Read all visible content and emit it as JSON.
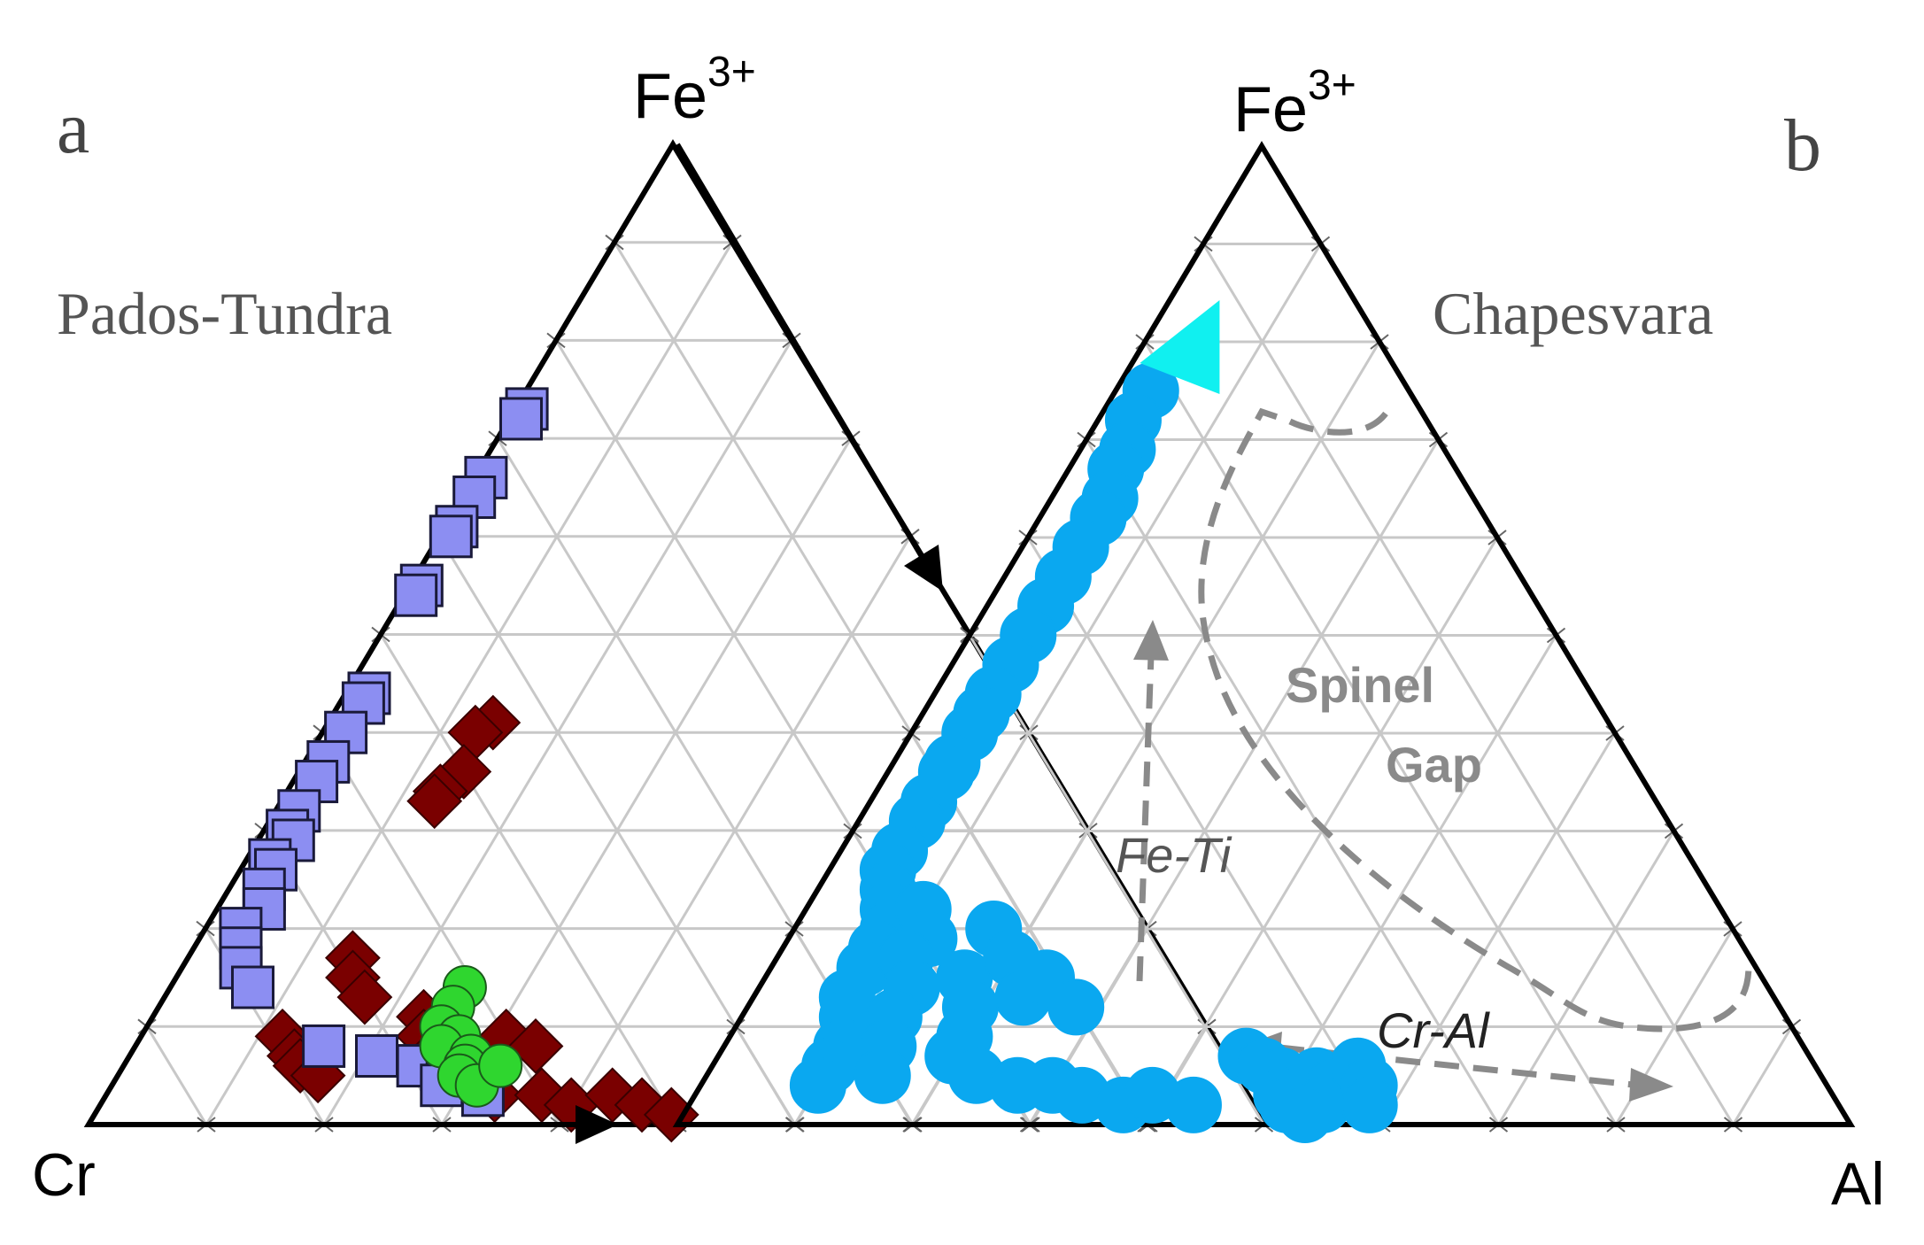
{
  "panels": [
    {
      "letter": "a",
      "locality": "Pados-Tundra",
      "apex_label": "Fe",
      "apex_sup": "3+",
      "left_label": "Cr",
      "right_label": ""
    },
    {
      "letter": "b",
      "locality": "Chapesvara",
      "apex_label": "Fe",
      "apex_sup": "3+",
      "left_label": "",
      "right_label": "Al",
      "annotations": {
        "spinel": "Spinel",
        "gap": "Gap",
        "fe_ti": "Fe-Ti",
        "cr_al": "Cr-Al"
      }
    }
  ],
  "colors": {
    "blue_square": "#8c8ef2",
    "dark_red_diamond": "#7a0000",
    "green_circle": "#2fd62f",
    "light_blue_circle": "#0aa8f0",
    "cyan_triangle": "#10f0f0",
    "grid": "#c8c8c8",
    "dashed": "#8a8a8a"
  },
  "chart_data": [
    {
      "type": "scatter",
      "ternary": true,
      "axes": [
        "Fe3+",
        "Cr",
        "Al"
      ],
      "gridlines_percent": 10,
      "series": [
        {
          "marker": "diamond",
          "color": "#7a0000",
          "points": [
            {
              "fe3": 0.41,
              "cr": 0.45,
              "al": 0.14
            },
            {
              "fe3": 0.4,
              "cr": 0.47,
              "al": 0.13
            },
            {
              "fe3": 0.36,
              "cr": 0.5,
              "al": 0.14
            },
            {
              "fe3": 0.34,
              "cr": 0.53,
              "al": 0.13
            },
            {
              "fe3": 0.33,
              "cr": 0.54,
              "al": 0.13
            },
            {
              "fe3": 0.17,
              "cr": 0.69,
              "al": 0.14
            },
            {
              "fe3": 0.15,
              "cr": 0.7,
              "al": 0.15
            },
            {
              "fe3": 0.13,
              "cr": 0.7,
              "al": 0.17
            },
            {
              "fe3": 0.09,
              "cr": 0.79,
              "al": 0.12
            },
            {
              "fe3": 0.07,
              "cr": 0.79,
              "al": 0.14
            },
            {
              "fe3": 0.06,
              "cr": 0.79,
              "al": 0.15
            },
            {
              "fe3": 0.05,
              "cr": 0.78,
              "al": 0.17
            },
            {
              "fe3": 0.11,
              "cr": 0.66,
              "al": 0.23
            },
            {
              "fe3": 0.09,
              "cr": 0.67,
              "al": 0.24
            },
            {
              "fe3": 0.08,
              "cr": 0.66,
              "al": 0.26
            },
            {
              "fe3": 0.06,
              "cr": 0.66,
              "al": 0.28
            },
            {
              "fe3": 0.05,
              "cr": 0.64,
              "al": 0.31
            },
            {
              "fe3": 0.03,
              "cr": 0.64,
              "al": 0.33
            },
            {
              "fe3": 0.03,
              "cr": 0.6,
              "al": 0.37
            },
            {
              "fe3": 0.02,
              "cr": 0.58,
              "al": 0.4
            },
            {
              "fe3": 0.03,
              "cr": 0.54,
              "al": 0.43
            },
            {
              "fe3": 0.02,
              "cr": 0.52,
              "al": 0.46
            },
            {
              "fe3": 0.01,
              "cr": 0.5,
              "al": 0.49
            },
            {
              "fe3": 0.09,
              "cr": 0.6,
              "al": 0.31
            },
            {
              "fe3": 0.08,
              "cr": 0.58,
              "al": 0.34
            }
          ]
        },
        {
          "marker": "square",
          "color": "#8c8ef2",
          "points": [
            {
              "fe3": 0.73,
              "cr": 0.26,
              "al": 0.01
            },
            {
              "fe3": 0.72,
              "cr": 0.27,
              "al": 0.01
            },
            {
              "fe3": 0.66,
              "cr": 0.33,
              "al": 0.01
            },
            {
              "fe3": 0.64,
              "cr": 0.35,
              "al": 0.01
            },
            {
              "fe3": 0.61,
              "cr": 0.38,
              "al": 0.01
            },
            {
              "fe3": 0.6,
              "cr": 0.39,
              "al": 0.01
            },
            {
              "fe3": 0.55,
              "cr": 0.44,
              "al": 0.01
            },
            {
              "fe3": 0.54,
              "cr": 0.45,
              "al": 0.01
            },
            {
              "fe3": 0.44,
              "cr": 0.54,
              "al": 0.02
            },
            {
              "fe3": 0.43,
              "cr": 0.55,
              "al": 0.02
            },
            {
              "fe3": 0.4,
              "cr": 0.58,
              "al": 0.02
            },
            {
              "fe3": 0.37,
              "cr": 0.61,
              "al": 0.02
            },
            {
              "fe3": 0.35,
              "cr": 0.63,
              "al": 0.02
            },
            {
              "fe3": 0.32,
              "cr": 0.66,
              "al": 0.02
            },
            {
              "fe3": 0.3,
              "cr": 0.68,
              "al": 0.02
            },
            {
              "fe3": 0.29,
              "cr": 0.68,
              "al": 0.03
            },
            {
              "fe3": 0.27,
              "cr": 0.71,
              "al": 0.02
            },
            {
              "fe3": 0.26,
              "cr": 0.71,
              "al": 0.03
            },
            {
              "fe3": 0.24,
              "cr": 0.73,
              "al": 0.03
            },
            {
              "fe3": 0.22,
              "cr": 0.74,
              "al": 0.04
            },
            {
              "fe3": 0.2,
              "cr": 0.77,
              "al": 0.03
            },
            {
              "fe3": 0.18,
              "cr": 0.78,
              "al": 0.04
            },
            {
              "fe3": 0.16,
              "cr": 0.79,
              "al": 0.05
            },
            {
              "fe3": 0.14,
              "cr": 0.79,
              "al": 0.07
            },
            {
              "fe3": 0.08,
              "cr": 0.76,
              "al": 0.16
            },
            {
              "fe3": 0.07,
              "cr": 0.72,
              "al": 0.21
            },
            {
              "fe3": 0.06,
              "cr": 0.69,
              "al": 0.25
            },
            {
              "fe3": 0.05,
              "cr": 0.67,
              "al": 0.28
            },
            {
              "fe3": 0.07,
              "cr": 0.66,
              "al": 0.27
            },
            {
              "fe3": 0.04,
              "cr": 0.68,
              "al": 0.28
            },
            {
              "fe3": 0.05,
              "cr": 0.64,
              "al": 0.31
            },
            {
              "fe3": 0.03,
              "cr": 0.65,
              "al": 0.32
            }
          ]
        },
        {
          "marker": "circle",
          "color": "#2fd62f",
          "points": [
            {
              "fe3": 0.14,
              "cr": 0.61,
              "al": 0.25
            },
            {
              "fe3": 0.12,
              "cr": 0.63,
              "al": 0.25
            },
            {
              "fe3": 0.1,
              "cr": 0.65,
              "al": 0.25
            },
            {
              "fe3": 0.09,
              "cr": 0.64,
              "al": 0.27
            },
            {
              "fe3": 0.08,
              "cr": 0.66,
              "al": 0.26
            },
            {
              "fe3": 0.07,
              "cr": 0.64,
              "al": 0.29
            },
            {
              "fe3": 0.06,
              "cr": 0.65,
              "al": 0.29
            },
            {
              "fe3": 0.05,
              "cr": 0.66,
              "al": 0.29
            },
            {
              "fe3": 0.04,
              "cr": 0.65,
              "al": 0.31
            },
            {
              "fe3": 0.06,
              "cr": 0.62,
              "al": 0.32
            }
          ]
        }
      ]
    },
    {
      "type": "scatter",
      "ternary": true,
      "axes": [
        "Fe3+",
        "Cr",
        "Al"
      ],
      "gridlines_percent": 10,
      "series": [
        {
          "marker": "circle",
          "color": "#0aa8f0",
          "points": [
            {
              "fe3": 0.75,
              "cr": 0.22,
              "al": 0.03
            },
            {
              "fe3": 0.72,
              "cr": 0.25,
              "al": 0.03
            },
            {
              "fe3": 0.69,
              "cr": 0.27,
              "al": 0.04
            },
            {
              "fe3": 0.67,
              "cr": 0.29,
              "al": 0.04
            },
            {
              "fe3": 0.64,
              "cr": 0.31,
              "al": 0.05
            },
            {
              "fe3": 0.62,
              "cr": 0.33,
              "al": 0.05
            },
            {
              "fe3": 0.59,
              "cr": 0.36,
              "al": 0.05
            },
            {
              "fe3": 0.56,
              "cr": 0.39,
              "al": 0.05
            },
            {
              "fe3": 0.53,
              "cr": 0.42,
              "al": 0.05
            },
            {
              "fe3": 0.5,
              "cr": 0.45,
              "al": 0.05
            },
            {
              "fe3": 0.47,
              "cr": 0.48,
              "al": 0.05
            },
            {
              "fe3": 0.44,
              "cr": 0.51,
              "al": 0.05
            },
            {
              "fe3": 0.42,
              "cr": 0.53,
              "al": 0.05
            },
            {
              "fe3": 0.4,
              "cr": 0.55,
              "al": 0.05
            },
            {
              "fe3": 0.37,
              "cr": 0.58,
              "al": 0.05
            },
            {
              "fe3": 0.36,
              "cr": 0.59,
              "al": 0.05
            },
            {
              "fe3": 0.33,
              "cr": 0.62,
              "al": 0.05
            },
            {
              "fe3": 0.31,
              "cr": 0.64,
              "al": 0.05
            },
            {
              "fe3": 0.28,
              "cr": 0.67,
              "al": 0.05
            },
            {
              "fe3": 0.26,
              "cr": 0.69,
              "al": 0.05
            },
            {
              "fe3": 0.24,
              "cr": 0.7,
              "al": 0.06
            },
            {
              "fe3": 0.22,
              "cr": 0.71,
              "al": 0.07
            },
            {
              "fe3": 0.2,
              "cr": 0.72,
              "al": 0.08
            },
            {
              "fe3": 0.18,
              "cr": 0.74,
              "al": 0.08
            },
            {
              "fe3": 0.16,
              "cr": 0.76,
              "al": 0.08
            },
            {
              "fe3": 0.13,
              "cr": 0.79,
              "al": 0.08
            },
            {
              "fe3": 0.11,
              "cr": 0.8,
              "al": 0.09
            },
            {
              "fe3": 0.08,
              "cr": 0.82,
              "al": 0.1
            },
            {
              "fe3": 0.06,
              "cr": 0.84,
              "al": 0.1
            },
            {
              "fe3": 0.04,
              "cr": 0.86,
              "al": 0.1
            },
            {
              "fe3": 0.22,
              "cr": 0.68,
              "al": 0.1
            },
            {
              "fe3": 0.19,
              "cr": 0.69,
              "al": 0.12
            },
            {
              "fe3": 0.17,
              "cr": 0.72,
              "al": 0.11
            },
            {
              "fe3": 0.14,
              "cr": 0.73,
              "al": 0.13
            },
            {
              "fe3": 0.11,
              "cr": 0.76,
              "al": 0.13
            },
            {
              "fe3": 0.08,
              "cr": 0.78,
              "al": 0.14
            },
            {
              "fe3": 0.05,
              "cr": 0.8,
              "al": 0.15
            },
            {
              "fe3": 0.15,
              "cr": 0.68,
              "al": 0.17
            },
            {
              "fe3": 0.12,
              "cr": 0.69,
              "al": 0.19
            },
            {
              "fe3": 0.09,
              "cr": 0.71,
              "al": 0.2
            },
            {
              "fe3": 0.2,
              "cr": 0.63,
              "al": 0.17
            },
            {
              "fe3": 0.17,
              "cr": 0.63,
              "al": 0.2
            },
            {
              "fe3": 0.13,
              "cr": 0.64,
              "al": 0.23
            },
            {
              "fe3": 0.15,
              "cr": 0.61,
              "al": 0.24
            },
            {
              "fe3": 0.12,
              "cr": 0.6,
              "al": 0.28
            },
            {
              "fe3": 0.07,
              "cr": 0.73,
              "al": 0.2
            },
            {
              "fe3": 0.05,
              "cr": 0.72,
              "al": 0.23
            },
            {
              "fe3": 0.04,
              "cr": 0.69,
              "al": 0.27
            },
            {
              "fe3": 0.04,
              "cr": 0.66,
              "al": 0.3
            },
            {
              "fe3": 0.03,
              "cr": 0.64,
              "al": 0.33
            },
            {
              "fe3": 0.02,
              "cr": 0.61,
              "al": 0.37
            },
            {
              "fe3": 0.03,
              "cr": 0.58,
              "al": 0.39
            },
            {
              "fe3": 0.02,
              "cr": 0.55,
              "al": 0.43
            },
            {
              "fe3": 0.07,
              "cr": 0.48,
              "al": 0.45
            },
            {
              "fe3": 0.06,
              "cr": 0.47,
              "al": 0.47
            },
            {
              "fe3": 0.05,
              "cr": 0.46,
              "al": 0.49
            },
            {
              "fe3": 0.03,
              "cr": 0.47,
              "al": 0.5
            },
            {
              "fe3": 0.02,
              "cr": 0.47,
              "al": 0.51
            },
            {
              "fe3": 0.05,
              "cr": 0.43,
              "al": 0.52
            },
            {
              "fe3": 0.04,
              "cr": 0.42,
              "al": 0.54
            },
            {
              "fe3": 0.02,
              "cr": 0.44,
              "al": 0.54
            },
            {
              "fe3": 0.01,
              "cr": 0.46,
              "al": 0.53
            },
            {
              "fe3": 0.06,
              "cr": 0.39,
              "al": 0.55
            },
            {
              "fe3": 0.04,
              "cr": 0.39,
              "al": 0.57
            },
            {
              "fe3": 0.02,
              "cr": 0.4,
              "al": 0.58
            }
          ]
        },
        {
          "marker": "triangle",
          "color": "#10f0f0",
          "points": [
            {
              "fe3": 0.79,
              "cr": 0.17,
              "al": 0.04
            }
          ]
        }
      ]
    }
  ]
}
